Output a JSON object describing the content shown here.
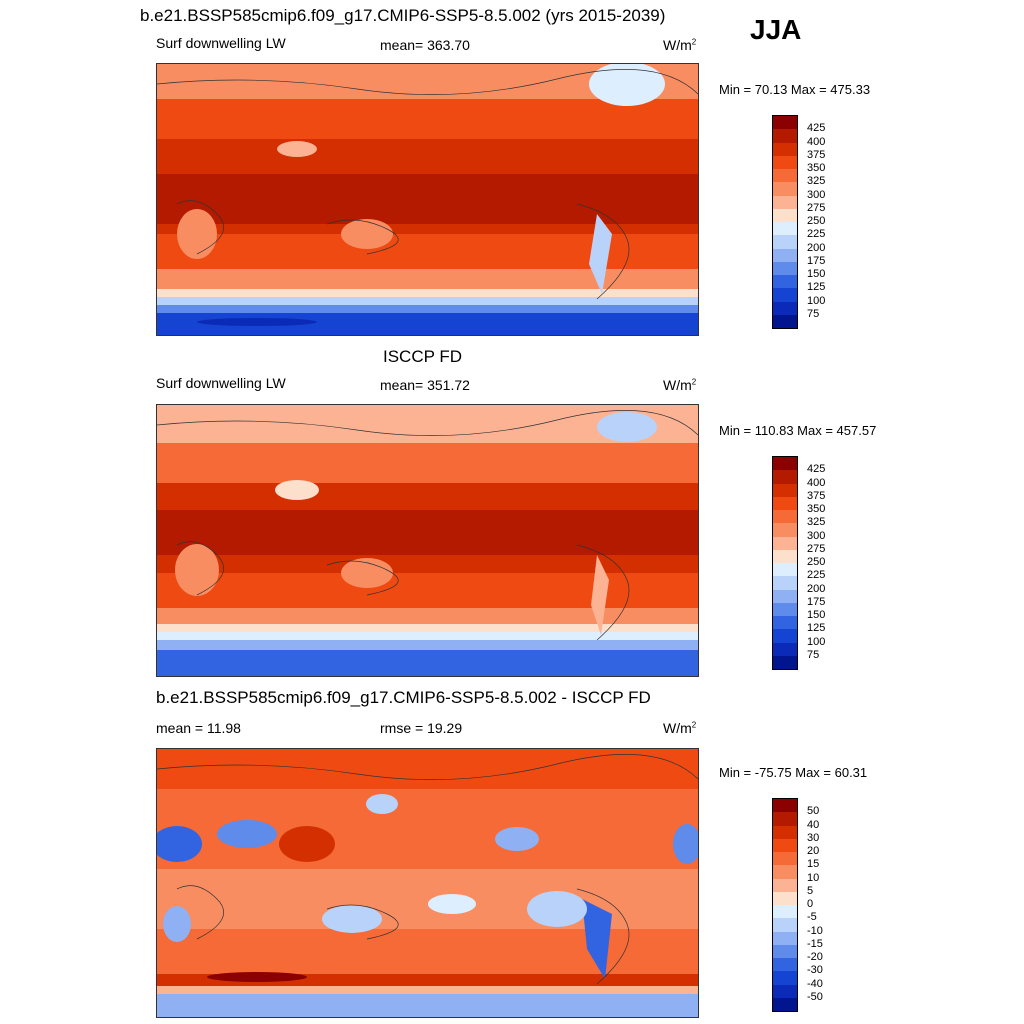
{
  "season": "JJA",
  "panels": [
    {
      "title": "b.e21.BSSP585cmip6.f09_g17.CMIP6-SSP5-8.5.002 (yrs 2015-2039)",
      "left_label": "Surf downwelling LW",
      "center_label": "mean= 363.70",
      "units": "W/m",
      "units_sup": "2",
      "minmax": "Min =  70.13 Max = 475.33"
    },
    {
      "title": "ISCCP FD",
      "left_label": "Surf downwelling LW",
      "center_label": "mean= 351.72",
      "units": "W/m",
      "units_sup": "2",
      "minmax": "Min = 110.83 Max = 457.57"
    },
    {
      "title": "b.e21.BSSP585cmip6.f09_g17.CMIP6-SSP5-8.5.002 - ISCCP FD",
      "left_label": "mean =  11.98",
      "center_label": "rmse =  19.29",
      "units": "W/m",
      "units_sup": "2",
      "minmax": "Min = -75.75 Max =  60.31"
    }
  ],
  "chart_data": [
    {
      "type": "heatmap",
      "title": "b.e21.BSSP585cmip6.f09_g17.CMIP6-SSP5-8.5.002 (yrs 2015-2039)",
      "variable": "Surf downwelling LW",
      "units": "W/m2",
      "mean": 363.7,
      "min": 70.13,
      "max": 475.33,
      "colorbar_levels": [
        425,
        400,
        375,
        350,
        325,
        300,
        275,
        250,
        225,
        200,
        175,
        150,
        125,
        100,
        75
      ],
      "colorbar_colors": [
        "#8b0000",
        "#b31a00",
        "#d42f00",
        "#ef4a12",
        "#f56a36",
        "#f98d62",
        "#fbb394",
        "#fde0cc",
        "#ddeeff",
        "#b9d2fa",
        "#8fb1f3",
        "#5f8bea",
        "#3264e2",
        "#1543d2",
        "#0b2ab8",
        "#00158e"
      ]
    },
    {
      "type": "heatmap",
      "title": "ISCCP FD",
      "variable": "Surf downwelling LW",
      "units": "W/m2",
      "mean": 351.72,
      "min": 110.83,
      "max": 457.57,
      "colorbar_levels": [
        425,
        400,
        375,
        350,
        325,
        300,
        275,
        250,
        225,
        200,
        175,
        150,
        125,
        100,
        75
      ],
      "colorbar_colors": [
        "#8b0000",
        "#b31a00",
        "#d42f00",
        "#ef4a12",
        "#f56a36",
        "#f98d62",
        "#fbb394",
        "#fde0cc",
        "#ddeeff",
        "#b9d2fa",
        "#8fb1f3",
        "#5f8bea",
        "#3264e2",
        "#1543d2",
        "#0b2ab8",
        "#00158e"
      ]
    },
    {
      "type": "heatmap",
      "title": "b.e21.BSSP585cmip6.f09_g17.CMIP6-SSP5-8.5.002 - ISCCP FD",
      "units": "W/m2",
      "mean": 11.98,
      "rmse": 19.29,
      "min": -75.75,
      "max": 60.31,
      "colorbar_levels": [
        50,
        40,
        30,
        20,
        15,
        10,
        5,
        0,
        -5,
        -10,
        -15,
        -20,
        -30,
        -40,
        -50
      ],
      "colorbar_colors": [
        "#8b0000",
        "#b31a00",
        "#d42f00",
        "#ef4a12",
        "#f56a36",
        "#f98d62",
        "#fbb394",
        "#fde0cc",
        "#ddeeff",
        "#b9d2fa",
        "#8fb1f3",
        "#5f8bea",
        "#3264e2",
        "#1543d2",
        "#0b2ab8",
        "#00158e"
      ]
    }
  ]
}
